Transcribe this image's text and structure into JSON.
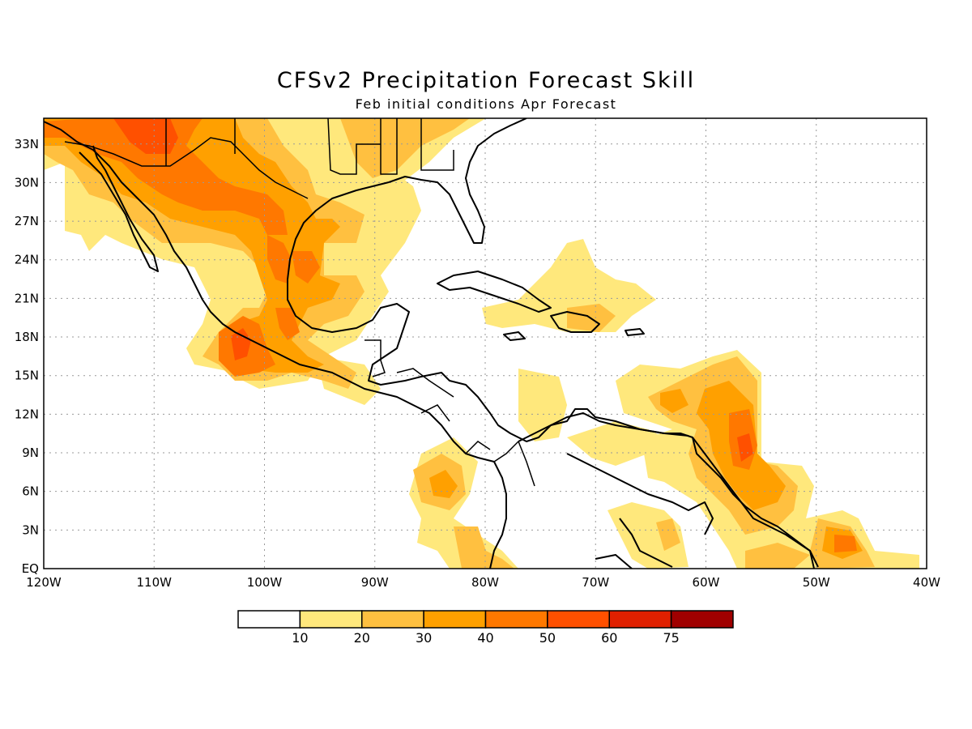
{
  "title": "CFSv2 Precipitation Forecast Skill",
  "subtitle": "Feb initial conditions  Apr Forecast",
  "map": {
    "region": "Mexico, Central America and Caribbean",
    "longitude_range": [
      -120,
      -40
    ],
    "latitude_range": [
      0,
      35
    ],
    "grid": true,
    "lon_labels": [
      "120W",
      "110W",
      "100W",
      "90W",
      "80W",
      "70W",
      "60W",
      "50W",
      "40W"
    ],
    "lat_labels": [
      "EQ",
      "3N",
      "6N",
      "9N",
      "12N",
      "15N",
      "18N",
      "21N",
      "24N",
      "27N",
      "30N",
      "33N"
    ]
  },
  "legend": {
    "thresholds": [
      "10",
      "20",
      "30",
      "40",
      "50",
      "60",
      "75"
    ],
    "colors": [
      "#ffffff",
      "#ffe87c",
      "#ffc040",
      "#ffa000",
      "#ff7800",
      "#ff5000",
      "#e02000",
      "#a00000"
    ]
  }
}
